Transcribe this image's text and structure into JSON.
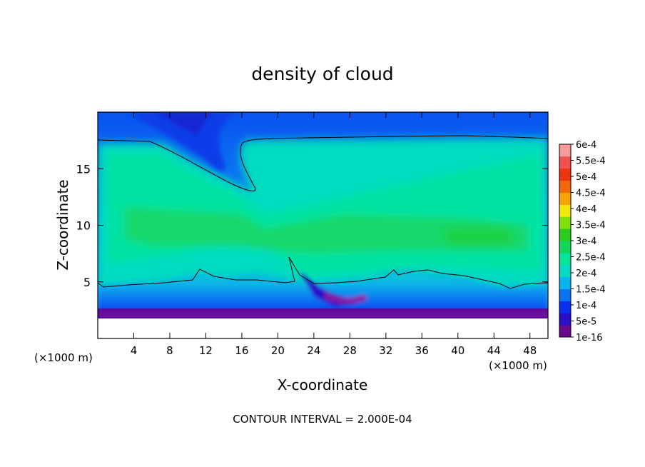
{
  "chart_data": {
    "type": "heatmap",
    "title": "density of cloud",
    "xlabel": "X-coordinate",
    "ylabel": "Z-coordinate",
    "x_unit": "(×1000 m)",
    "y_unit": "(×1000 m)",
    "xlim": [
      0,
      50
    ],
    "ylim": [
      0,
      20
    ],
    "x_ticks": [
      4,
      8,
      12,
      16,
      20,
      24,
      28,
      32,
      36,
      40,
      44,
      48
    ],
    "y_ticks": [
      5,
      10,
      15
    ],
    "footer": "CONTOUR INTERVAL = 2.000E-04",
    "colorbar": {
      "labels": [
        "1e-16",
        "5e-5",
        "1e-4",
        "1.5e-4",
        "2e-4",
        "2.5e-4",
        "3e-4",
        "3.5e-4",
        "4e-4",
        "4.5e-4",
        "5e-4",
        "5.5e-4",
        "6e-4"
      ],
      "colors": [
        "#6a0a8c",
        "#2a0fc8",
        "#0a2ef0",
        "#0a74f5",
        "#08b4ee",
        "#06d9c4",
        "#06e39a",
        "#10d75a",
        "#2dcc1e",
        "#7edf0a",
        "#efe80a",
        "#f7a205",
        "#f26a08",
        "#ef3410",
        "#f05050",
        "#f79a9a"
      ]
    },
    "field_summary": {
      "ground_gap_z": [
        0,
        1.3
      ],
      "low_cloud_layer_z": [
        1.3,
        4.5
      ],
      "main_cloud_z": [
        5,
        17.5
      ],
      "upper_clear_region_x": [
        4,
        14
      ],
      "max_density": 0.00028
    },
    "contour_level": 0.0002
  }
}
